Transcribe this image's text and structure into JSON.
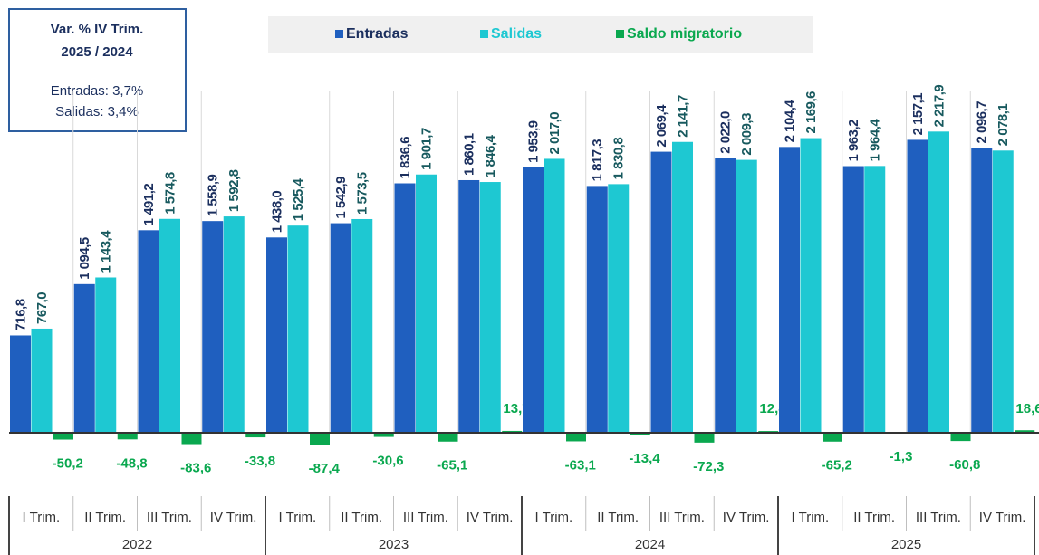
{
  "chart_data": {
    "type": "bar",
    "categories": [
      "I Trim.",
      "II Trim.",
      "III Trim.",
      "IV Trim.",
      "I Trim.",
      "II Trim.",
      "III Trim.",
      "IV Trim.",
      "I Trim.",
      "II Trim.",
      "III Trim.",
      "IV Trim.",
      "I Trim.",
      "II Trim.",
      "III Trim.",
      "IV Trim."
    ],
    "years": [
      "2022",
      "2023",
      "2024",
      "2025"
    ],
    "annotations": {
      "title": "Var. % IV Trim.",
      "subtitle": "2025  / 2024",
      "lines": [
        "Entradas:  3,7%",
        "Salidas:  3,4%"
      ]
    },
    "series": [
      {
        "name": "Entradas",
        "color": "#1f5fbf",
        "label_color": "#1b2f5e",
        "values": [
          716.8,
          1094.5,
          1491.2,
          1558.9,
          1438.0,
          1542.9,
          1836.6,
          1860.1,
          1953.9,
          1817.3,
          2069.4,
          2022.0,
          2104.4,
          1963.2,
          2157.1,
          2096.7
        ],
        "value_labels": [
          "716,8",
          "1 094,5",
          "1 491,2",
          "1 558,9",
          "1 438,0",
          "1 542,9",
          "1 836,6",
          "1 860,1",
          "1 953,9",
          "1 817,3",
          "2 069,4",
          "2 022,0",
          "2 104,4",
          "1 963,2",
          "2 157,1",
          "2 096,7"
        ]
      },
      {
        "name": "Salidas",
        "color": "#1ec8d2",
        "label_color": "#17595e",
        "values": [
          767.0,
          1143.4,
          1574.8,
          1592.8,
          1525.4,
          1573.5,
          1901.7,
          1846.4,
          2017.0,
          1830.8,
          2141.7,
          2009.3,
          2169.6,
          1964.4,
          2217.9,
          2078.1
        ],
        "value_labels": [
          "767,0",
          "1 143,4",
          "1 574,8",
          "1 592,8",
          "1 525,4",
          "1 573,5",
          "1 901,7",
          "1 846,4",
          "2 017,0",
          "1 830,8",
          "2 141,7",
          "2 009,3",
          "2 169,6",
          "1 964,4",
          "2 217,9",
          "2 078,1"
        ]
      },
      {
        "name": "Saldo migratorio",
        "color": "#0aa84f",
        "label_color": "#0aa84f",
        "values": [
          -50.2,
          -48.8,
          -83.6,
          -33.8,
          -87.4,
          -30.6,
          -65.1,
          13.7,
          -63.1,
          -13.4,
          -72.3,
          12.8,
          -65.2,
          -1.3,
          -60.8,
          18.6
        ],
        "value_labels": [
          "-50,2",
          "-48,8",
          "-83,6",
          "-33,8",
          "-87,4",
          "-30,6",
          "-65,1",
          "13,7",
          "-63,1",
          "-13,4",
          "-72,3",
          "12,8",
          "-65,2",
          "-1,3",
          "-60,8",
          "18,6"
        ]
      }
    ]
  }
}
